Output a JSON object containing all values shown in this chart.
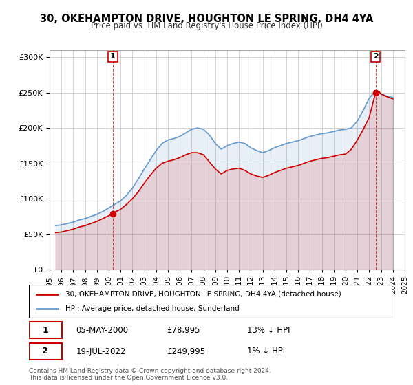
{
  "title": "30, OKEHAMPTON DRIVE, HOUGHTON LE SPRING, DH4 4YA",
  "subtitle": "Price paid vs. HM Land Registry's House Price Index (HPI)",
  "legend_line1": "30, OKEHAMPTON DRIVE, HOUGHTON LE SPRING, DH4 4YA (detached house)",
  "legend_line2": "HPI: Average price, detached house, Sunderland",
  "table_row1": [
    "1",
    "05-MAY-2000",
    "£78,995",
    "13% ↓ HPI"
  ],
  "table_row2": [
    "2",
    "19-JUL-2022",
    "£249,995",
    "1% ↓ HPI"
  ],
  "sale1_year": 2000.35,
  "sale1_price": 78995,
  "sale2_year": 2022.54,
  "sale2_price": 249995,
  "ylabel": "",
  "xlabel": "",
  "ylim": [
    0,
    310000
  ],
  "xlim_start": 1995,
  "xlim_end": 2025,
  "background_color": "#ffffff",
  "plot_bg_color": "#ffffff",
  "grid_color": "#cccccc",
  "hpi_color": "#6699cc",
  "price_color": "#cc0000",
  "annotation1_color": "#cc0000",
  "annotation2_color": "#cc0000",
  "footer": "Contains HM Land Registry data © Crown copyright and database right 2024.\nThis data is licensed under the Open Government Licence v3.0.",
  "hpi_data": {
    "years": [
      1995.5,
      1996.0,
      1996.5,
      1997.0,
      1997.5,
      1998.0,
      1998.5,
      1999.0,
      1999.5,
      2000.0,
      2000.5,
      2001.0,
      2001.5,
      2002.0,
      2002.5,
      2003.0,
      2003.5,
      2004.0,
      2004.5,
      2005.0,
      2005.5,
      2006.0,
      2006.5,
      2007.0,
      2007.5,
      2008.0,
      2008.5,
      2009.0,
      2009.5,
      2010.0,
      2010.5,
      2011.0,
      2011.5,
      2012.0,
      2012.5,
      2013.0,
      2013.5,
      2014.0,
      2014.5,
      2015.0,
      2015.5,
      2016.0,
      2016.5,
      2017.0,
      2017.5,
      2018.0,
      2018.5,
      2019.0,
      2019.5,
      2020.0,
      2020.5,
      2021.0,
      2021.5,
      2022.0,
      2022.5,
      2023.0,
      2023.5,
      2024.0
    ],
    "values": [
      62000,
      63000,
      65000,
      67000,
      70000,
      72000,
      75000,
      78000,
      82000,
      87000,
      92000,
      97000,
      105000,
      115000,
      128000,
      142000,
      155000,
      168000,
      178000,
      183000,
      185000,
      188000,
      193000,
      198000,
      200000,
      198000,
      190000,
      178000,
      170000,
      175000,
      178000,
      180000,
      178000,
      172000,
      168000,
      165000,
      168000,
      172000,
      175000,
      178000,
      180000,
      182000,
      185000,
      188000,
      190000,
      192000,
      193000,
      195000,
      197000,
      198000,
      200000,
      210000,
      225000,
      242000,
      252000,
      248000,
      245000,
      243000
    ]
  },
  "price_data": {
    "years": [
      1995.5,
      1996.0,
      1996.5,
      1997.0,
      1997.5,
      1998.0,
      1998.5,
      1999.0,
      1999.5,
      2000.0,
      2000.35,
      2000.5,
      2001.0,
      2001.5,
      2002.0,
      2002.5,
      2003.0,
      2003.5,
      2004.0,
      2004.5,
      2005.0,
      2005.5,
      2006.0,
      2006.5,
      2007.0,
      2007.5,
      2008.0,
      2008.5,
      2009.0,
      2009.5,
      2010.0,
      2010.5,
      2011.0,
      2011.5,
      2012.0,
      2012.5,
      2013.0,
      2013.5,
      2014.0,
      2014.5,
      2015.0,
      2015.5,
      2016.0,
      2016.5,
      2017.0,
      2017.5,
      2018.0,
      2018.5,
      2019.0,
      2019.5,
      2020.0,
      2020.5,
      2021.0,
      2021.5,
      2022.0,
      2022.54,
      2022.8,
      2023.0,
      2023.5,
      2024.0
    ],
    "values": [
      52000,
      53000,
      55000,
      57000,
      60000,
      62000,
      65000,
      68000,
      72000,
      76000,
      78995,
      81000,
      85000,
      92000,
      100000,
      110000,
      122000,
      133000,
      143000,
      150000,
      153000,
      155000,
      158000,
      162000,
      165000,
      165000,
      162000,
      152000,
      142000,
      135000,
      140000,
      142000,
      143000,
      140000,
      135000,
      132000,
      130000,
      133000,
      137000,
      140000,
      143000,
      145000,
      147000,
      150000,
      153000,
      155000,
      157000,
      158000,
      160000,
      162000,
      163000,
      170000,
      183000,
      198000,
      215000,
      249995,
      252000,
      248000,
      244000,
      241000
    ]
  }
}
